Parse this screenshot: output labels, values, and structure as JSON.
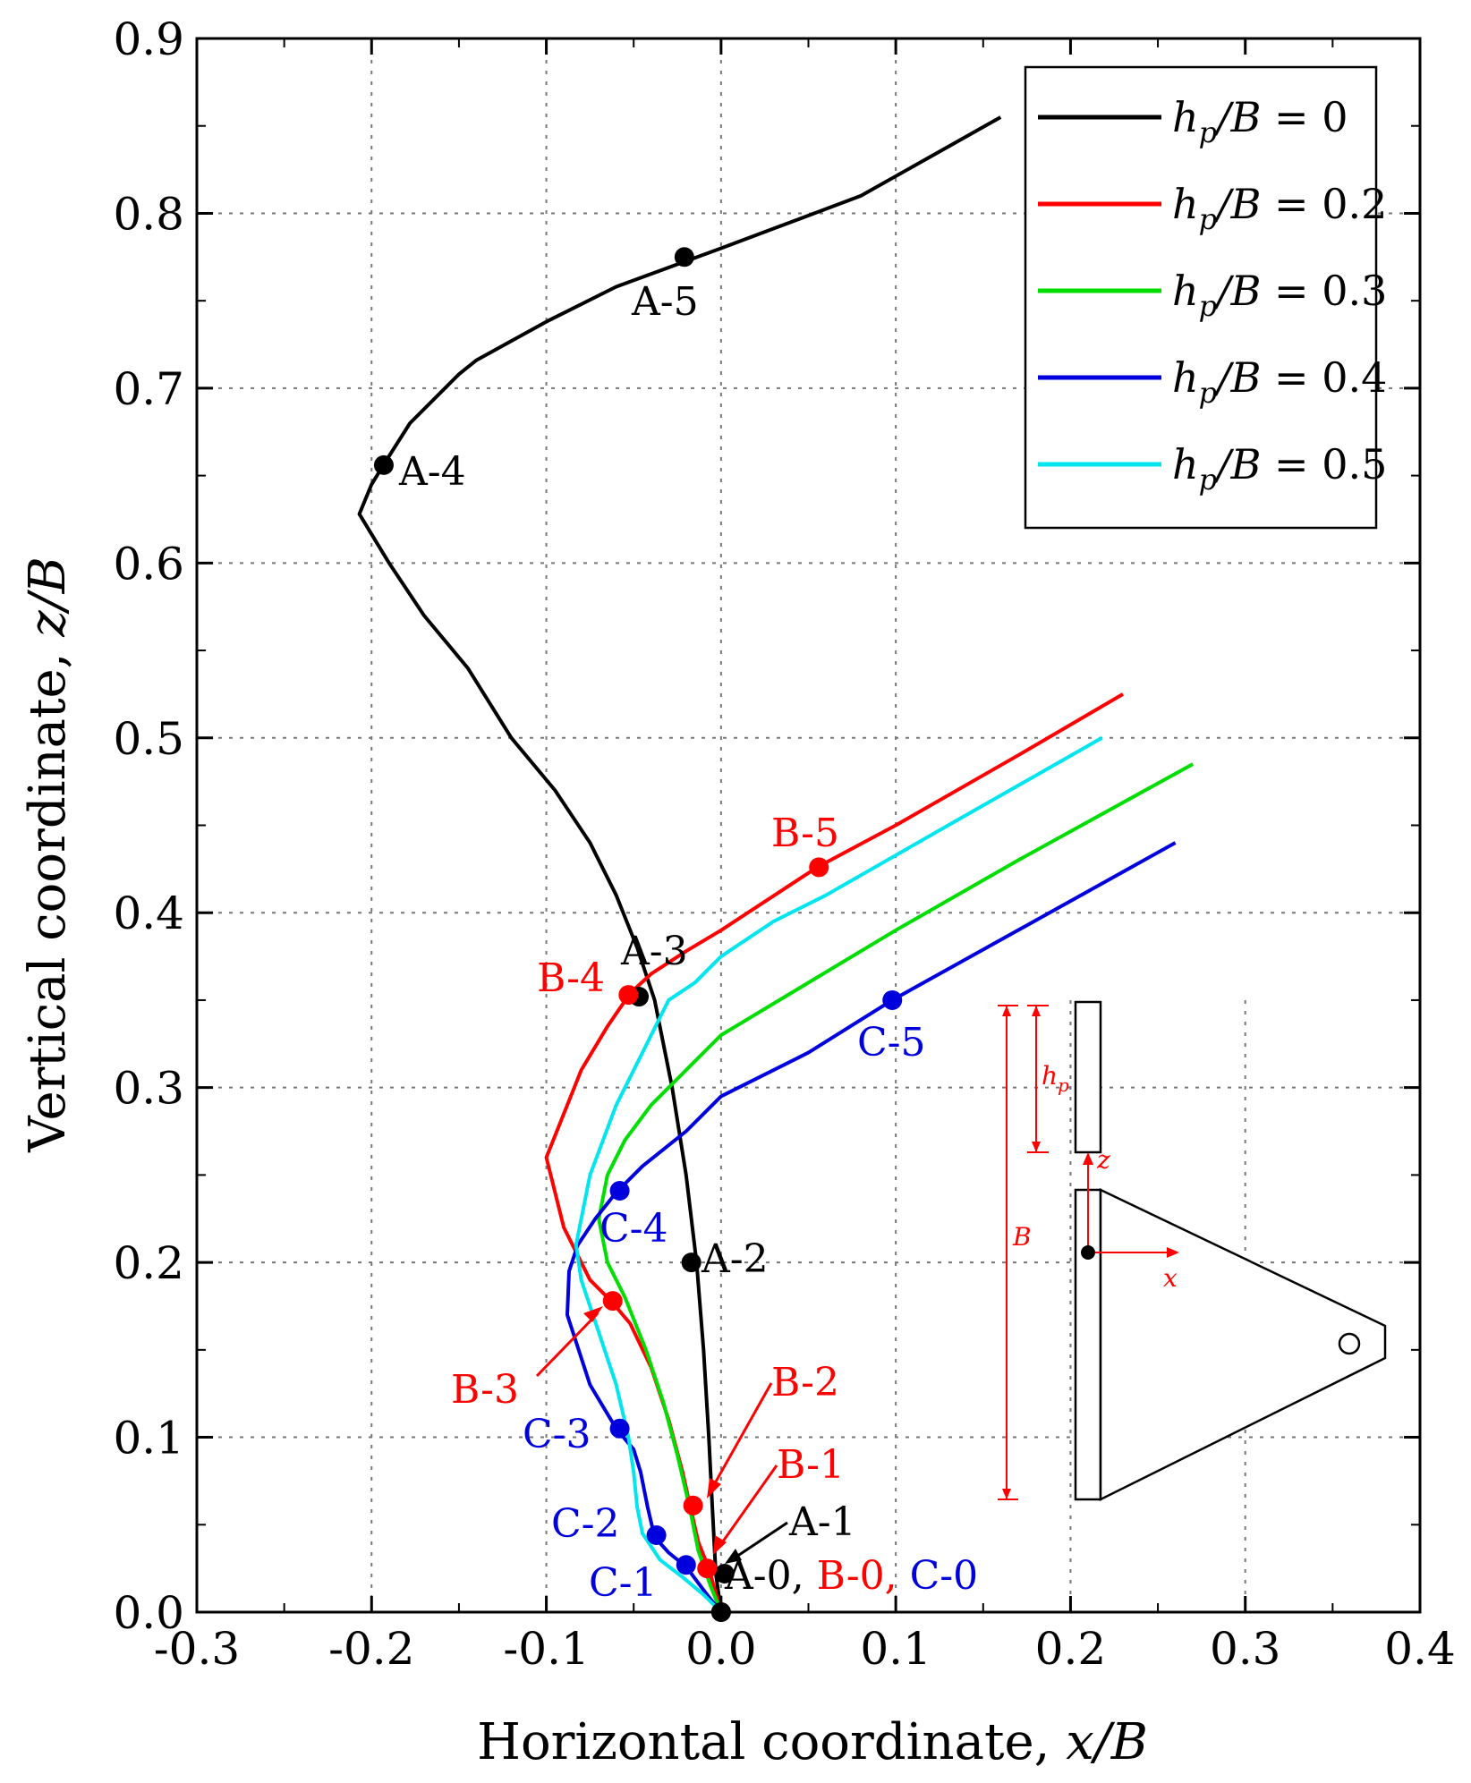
{
  "chart_data": {
    "type": "line",
    "title": "",
    "xlabel_prefix": "Horizontal coordinate, ",
    "xlabel_var": "x",
    "xlabel_suffix": "/B",
    "ylabel_prefix": "Vertical coordinate, ",
    "ylabel_var": "z",
    "ylabel_suffix": "/B",
    "xlim": [
      -0.3,
      0.4
    ],
    "ylim": [
      0.0,
      0.9
    ],
    "xticks": [
      -0.3,
      -0.2,
      -0.1,
      0.0,
      0.1,
      0.2,
      0.3,
      0.4
    ],
    "xtick_labels": [
      "-0.3",
      "-0.2",
      "-0.1",
      "0.0",
      "0.1",
      "0.2",
      "0.3",
      "0.4"
    ],
    "yticks": [
      0.0,
      0.1,
      0.2,
      0.3,
      0.4,
      0.5,
      0.6,
      0.7,
      0.8,
      0.9
    ],
    "ytick_labels": [
      "0.0",
      "0.1",
      "0.2",
      "0.3",
      "0.4",
      "0.5",
      "0.6",
      "0.7",
      "0.8",
      "0.9"
    ],
    "grid": true,
    "legend_position": "top-right",
    "series": [
      {
        "name": "hp/B = 0",
        "legend_value": "0",
        "color": "#000000",
        "x": [
          0.0,
          -0.003,
          -0.005,
          -0.007,
          -0.01,
          -0.014,
          -0.02,
          -0.028,
          -0.038,
          -0.048,
          -0.06,
          -0.075,
          -0.095,
          -0.12,
          -0.145,
          -0.17,
          -0.19,
          -0.207,
          -0.2,
          -0.192,
          -0.178,
          -0.16,
          -0.15,
          -0.14,
          -0.1,
          -0.06,
          0.0,
          0.08,
          0.16
        ],
        "y": [
          0.0,
          0.022,
          0.06,
          0.1,
          0.15,
          0.2,
          0.25,
          0.3,
          0.35,
          0.38,
          0.41,
          0.44,
          0.47,
          0.5,
          0.54,
          0.57,
          0.6,
          0.628,
          0.645,
          0.658,
          0.68,
          0.698,
          0.708,
          0.716,
          0.738,
          0.758,
          0.78,
          0.81,
          0.855
        ]
      },
      {
        "name": "hp/B = 0.2",
        "legend_value": "0.2",
        "color": "#ff0000",
        "x": [
          0.0,
          -0.007,
          -0.013,
          -0.018,
          -0.022,
          -0.03,
          -0.04,
          -0.052,
          -0.063,
          -0.075,
          -0.09,
          -0.1,
          -0.092,
          -0.08,
          -0.065,
          -0.052,
          -0.04,
          -0.02,
          0.0,
          0.055,
          0.1,
          0.17,
          0.23
        ],
        "y": [
          0.0,
          0.025,
          0.04,
          0.062,
          0.08,
          0.11,
          0.14,
          0.165,
          0.178,
          0.19,
          0.22,
          0.26,
          0.28,
          0.31,
          0.335,
          0.354,
          0.365,
          0.378,
          0.39,
          0.426,
          0.45,
          0.49,
          0.525
        ]
      },
      {
        "name": "hp/B = 0.3",
        "legend_value": "0.3",
        "color": "#00dd00",
        "x": [
          0.0,
          -0.006,
          -0.013,
          -0.018,
          -0.025,
          -0.033,
          -0.043,
          -0.055,
          -0.065,
          -0.07,
          -0.065,
          -0.055,
          -0.04,
          -0.02,
          0.0,
          0.05,
          0.1,
          0.17,
          0.27
        ],
        "y": [
          0.0,
          0.015,
          0.035,
          0.06,
          0.09,
          0.12,
          0.15,
          0.18,
          0.2,
          0.225,
          0.25,
          0.27,
          0.29,
          0.31,
          0.33,
          0.36,
          0.39,
          0.43,
          0.485
        ]
      },
      {
        "name": "hp/B = 0.4",
        "legend_value": "0.4",
        "color": "#0000dd",
        "x": [
          0.0,
          -0.008,
          -0.02,
          -0.03,
          -0.038,
          -0.042,
          -0.046,
          -0.05,
          -0.06,
          -0.075,
          -0.088,
          -0.087,
          -0.082,
          -0.072,
          -0.06,
          -0.045,
          -0.02,
          0.0,
          0.05,
          0.098,
          0.17,
          0.26
        ],
        "y": [
          0.0,
          0.01,
          0.026,
          0.034,
          0.043,
          0.06,
          0.08,
          0.093,
          0.105,
          0.13,
          0.17,
          0.195,
          0.21,
          0.225,
          0.24,
          0.255,
          0.275,
          0.295,
          0.32,
          0.35,
          0.39,
          0.44
        ]
      },
      {
        "name": "hp/B = 0.5",
        "legend_value": "0.5",
        "color": "#00e5ee",
        "x": [
          0.0,
          -0.01,
          -0.022,
          -0.035,
          -0.045,
          -0.048,
          -0.05,
          -0.053,
          -0.06,
          -0.07,
          -0.08,
          -0.083,
          -0.075,
          -0.06,
          -0.045,
          -0.03,
          -0.015,
          0.0,
          0.03,
          0.06,
          0.13,
          0.218
        ],
        "y": [
          0.0,
          0.01,
          0.02,
          0.03,
          0.045,
          0.06,
          0.08,
          0.1,
          0.13,
          0.16,
          0.19,
          0.21,
          0.25,
          0.29,
          0.32,
          0.35,
          0.36,
          0.375,
          0.395,
          0.41,
          0.45,
          0.5
        ]
      }
    ],
    "points": [
      {
        "label": "A-0",
        "x": 0.0,
        "y": 0.0,
        "color": "#000000"
      },
      {
        "label": "A-1",
        "x": 0.002,
        "y": 0.022,
        "color": "#000000"
      },
      {
        "label": "A-2",
        "x": -0.017,
        "y": 0.2,
        "color": "#000000"
      },
      {
        "label": "A-3",
        "x": -0.047,
        "y": 0.352,
        "color": "#000000"
      },
      {
        "label": "A-4",
        "x": -0.193,
        "y": 0.656,
        "color": "#000000"
      },
      {
        "label": "A-5",
        "x": -0.021,
        "y": 0.775,
        "color": "#000000"
      },
      {
        "label": "B-1",
        "x": -0.008,
        "y": 0.025,
        "color": "#ff0000"
      },
      {
        "label": "B-2",
        "x": -0.016,
        "y": 0.061,
        "color": "#ff0000"
      },
      {
        "label": "B-3",
        "x": -0.062,
        "y": 0.178,
        "color": "#ff0000"
      },
      {
        "label": "B-4",
        "x": -0.053,
        "y": 0.353,
        "color": "#ff0000"
      },
      {
        "label": "B-5",
        "x": 0.056,
        "y": 0.426,
        "color": "#ff0000"
      },
      {
        "label": "C-1",
        "x": -0.02,
        "y": 0.027,
        "color": "#0000dd"
      },
      {
        "label": "C-2",
        "x": -0.037,
        "y": 0.044,
        "color": "#0000dd"
      },
      {
        "label": "C-3",
        "x": -0.058,
        "y": 0.105,
        "color": "#0000dd"
      },
      {
        "label": "C-4",
        "x": -0.058,
        "y": 0.241,
        "color": "#0000dd"
      },
      {
        "label": "C-5",
        "x": 0.098,
        "y": 0.35,
        "color": "#0000dd"
      }
    ],
    "annotations": {
      "origin_labels": [
        {
          "text": "A-0, ",
          "color": "#000000"
        },
        {
          "text": "B-0, ",
          "color": "#ff0000"
        },
        {
          "text": "C-0",
          "color": "#0000dd"
        }
      ]
    },
    "legend": {
      "var_h": "h",
      "var_sub": "p",
      "var_rest": "/B = "
    },
    "inset": {
      "label_hp_h": "h",
      "label_hp_sub": "p",
      "label_B": "B",
      "label_z": "z",
      "label_x": "x"
    }
  }
}
